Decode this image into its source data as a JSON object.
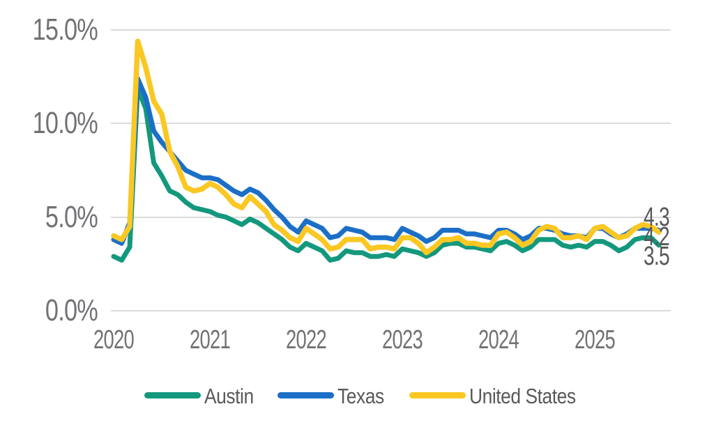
{
  "chart_data": {
    "type": "line",
    "title": "",
    "x_interval": "monthly",
    "x_start": "2020-01",
    "x_end": "2025-09",
    "x_tick_labels": [
      "2020",
      "2021",
      "2022",
      "2023",
      "2024",
      "2025"
    ],
    "y_tick_labels": [
      "15.0%",
      "10.0%",
      "5.0%",
      "0.0%"
    ],
    "y_axis_range": [
      0,
      15
    ],
    "grid": "horizontal",
    "legend_position": "bottom",
    "series": [
      {
        "name": "Austin",
        "color": "#13987D",
        "values": [
          2.9,
          2.7,
          3.4,
          11.9,
          10.8,
          7.9,
          7.2,
          6.4,
          6.2,
          5.8,
          5.5,
          5.4,
          5.3,
          5.1,
          5.0,
          4.8,
          4.6,
          4.9,
          4.7,
          4.4,
          4.1,
          3.8,
          3.4,
          3.2,
          3.6,
          3.4,
          3.2,
          2.7,
          2.8,
          3.2,
          3.1,
          3.1,
          2.9,
          2.9,
          3.0,
          2.9,
          3.3,
          3.2,
          3.1,
          2.9,
          3.1,
          3.5,
          3.6,
          3.6,
          3.4,
          3.4,
          3.3,
          3.2,
          3.6,
          3.7,
          3.5,
          3.2,
          3.4,
          3.8,
          3.8,
          3.8,
          3.5,
          3.4,
          3.5,
          3.4,
          3.7,
          3.7,
          3.5,
          3.2,
          3.4,
          3.8,
          3.9,
          3.9,
          3.5
        ]
      },
      {
        "name": "Texas",
        "color": "#1B6FC7",
        "values": [
          3.8,
          3.6,
          4.7,
          12.4,
          11.4,
          9.6,
          9.0,
          8.5,
          8.0,
          7.5,
          7.3,
          7.1,
          7.1,
          7.0,
          6.7,
          6.4,
          6.2,
          6.5,
          6.3,
          5.9,
          5.4,
          5.0,
          4.5,
          4.2,
          4.8,
          4.6,
          4.4,
          3.9,
          4.0,
          4.4,
          4.3,
          4.2,
          3.9,
          3.9,
          3.9,
          3.8,
          4.4,
          4.2,
          4.0,
          3.7,
          3.9,
          4.3,
          4.3,
          4.3,
          4.1,
          4.1,
          4.0,
          3.9,
          4.3,
          4.3,
          4.1,
          3.8,
          4.0,
          4.4,
          4.4,
          4.3,
          4.1,
          4.0,
          4.0,
          3.9,
          4.4,
          4.4,
          4.1,
          3.9,
          4.1,
          4.4,
          4.4,
          4.4,
          4.3
        ]
      },
      {
        "name": "United States",
        "color": "#FAC723",
        "values": [
          4.0,
          3.8,
          4.5,
          14.4,
          13.0,
          11.2,
          10.5,
          8.5,
          7.7,
          6.6,
          6.4,
          6.5,
          6.8,
          6.6,
          6.2,
          5.7,
          5.5,
          6.1,
          5.7,
          5.3,
          4.6,
          4.3,
          3.9,
          3.7,
          4.4,
          4.1,
          3.8,
          3.3,
          3.4,
          3.8,
          3.8,
          3.8,
          3.3,
          3.4,
          3.4,
          3.3,
          3.9,
          3.9,
          3.6,
          3.1,
          3.4,
          3.8,
          3.8,
          3.9,
          3.6,
          3.6,
          3.5,
          3.5,
          4.1,
          4.2,
          3.9,
          3.5,
          3.7,
          4.3,
          4.5,
          4.4,
          3.9,
          3.9,
          4.0,
          3.8,
          4.4,
          4.5,
          4.2,
          3.9,
          4.0,
          4.4,
          4.6,
          4.5,
          4.2
        ]
      }
    ],
    "end_value_labels": [
      {
        "text": "4.3",
        "series": "Texas"
      },
      {
        "text": "4.2",
        "series": "United States"
      },
      {
        "text": "3.5",
        "series": "Austin"
      }
    ]
  }
}
